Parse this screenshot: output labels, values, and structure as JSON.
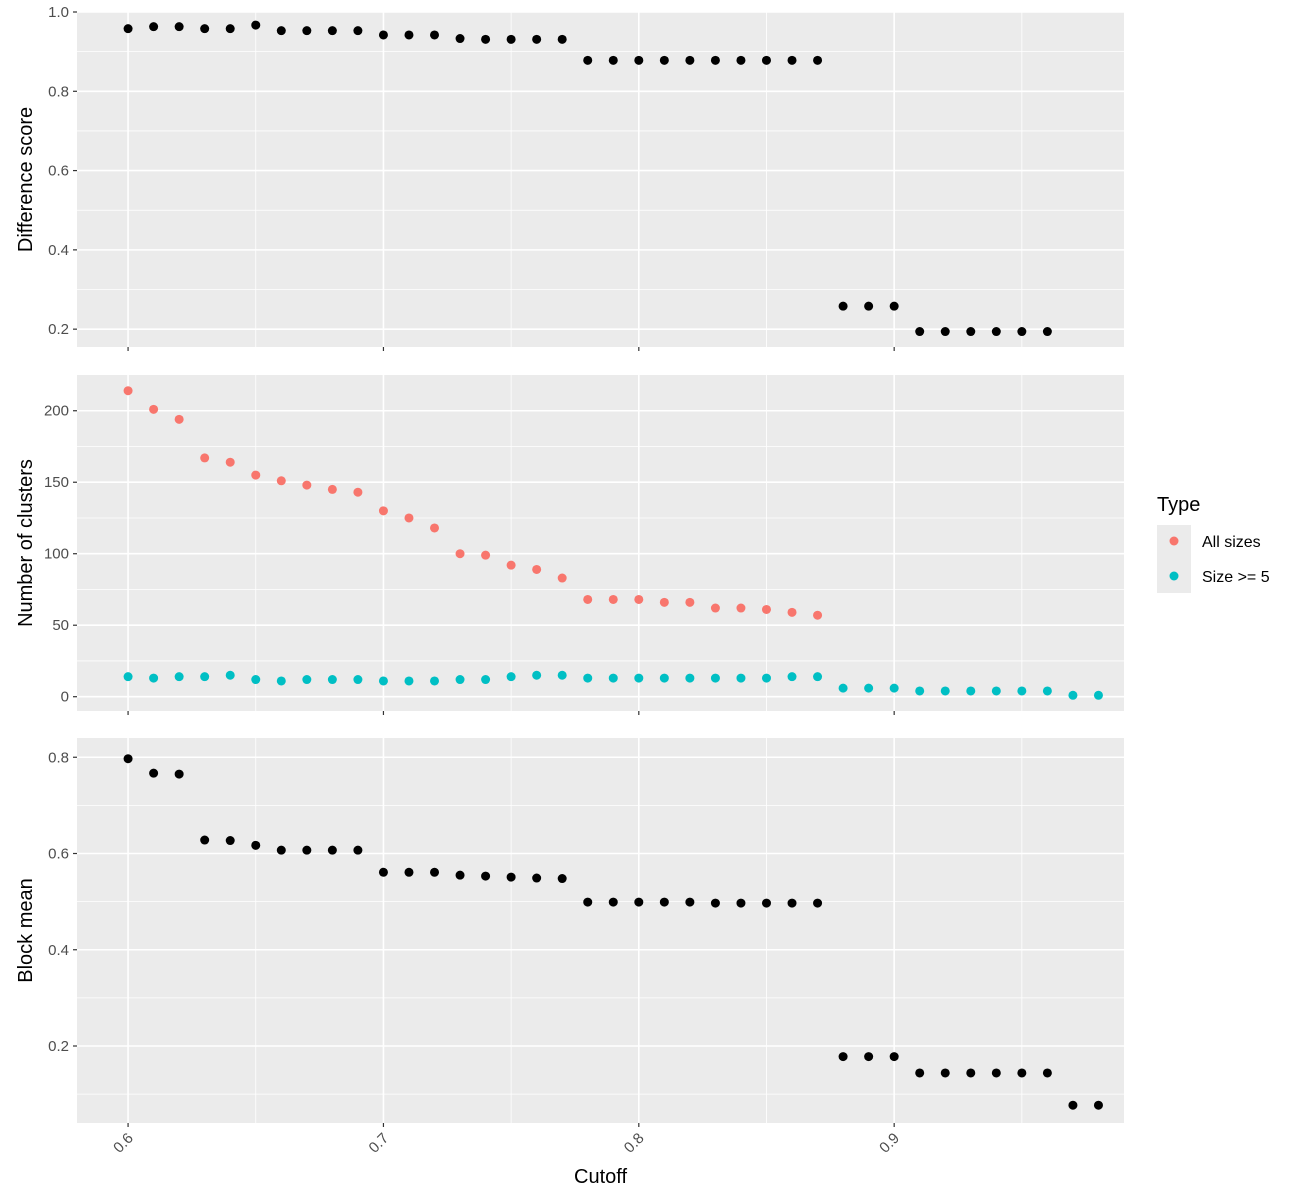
{
  "chart_data": {
    "type": "scatter",
    "x_label": "Cutoff",
    "x_ticks": [
      "0.6",
      "0.7",
      "0.8",
      "0.9"
    ],
    "x_range": [
      0.58,
      0.99
    ],
    "legend": {
      "title": "Type",
      "position": "right",
      "entries": [
        {
          "label": "All sizes",
          "color": "#F8766D"
        },
        {
          "label": "Size >= 5",
          "color": "#00BFC4"
        }
      ]
    },
    "x": [
      0.6,
      0.61,
      0.62,
      0.63,
      0.64,
      0.65,
      0.66,
      0.67,
      0.68,
      0.69,
      0.7,
      0.71,
      0.72,
      0.73,
      0.74,
      0.75,
      0.76,
      0.77,
      0.78,
      0.79,
      0.8,
      0.81,
      0.82,
      0.83,
      0.84,
      0.85,
      0.86,
      0.87,
      0.88,
      0.89,
      0.9,
      0.91,
      0.92,
      0.93,
      0.94,
      0.95,
      0.96,
      0.97,
      0.98
    ],
    "panels": [
      {
        "ylabel": "Difference score",
        "ylim": [
          0.155,
          1.0
        ],
        "y_ticks": [
          "0.2",
          "0.4",
          "0.6",
          "0.8",
          "1.0"
        ],
        "series": [
          {
            "color": "#000000",
            "values": [
              0.958,
              0.963,
              0.963,
              0.958,
              0.958,
              0.967,
              0.953,
              0.953,
              0.953,
              0.953,
              0.942,
              0.942,
              0.942,
              0.933,
              0.931,
              0.931,
              0.931,
              0.931,
              0.878,
              0.878,
              0.878,
              0.878,
              0.878,
              0.878,
              0.878,
              0.878,
              0.878,
              0.878,
              0.258,
              0.258,
              0.258,
              0.194,
              0.194,
              0.194,
              0.194,
              0.194,
              0.194,
              null,
              null
            ]
          }
        ]
      },
      {
        "ylabel": "Number of clusters",
        "ylim": [
          -10,
          225
        ],
        "y_ticks": [
          "0",
          "50",
          "100",
          "150",
          "200"
        ],
        "series": [
          {
            "name": "All sizes",
            "color": "#F8766D",
            "values": [
              214,
              201,
              194,
              167,
              164,
              155,
              151,
              148,
              145,
              143,
              130,
              125,
              118,
              100,
              99,
              92,
              89,
              83,
              68,
              68,
              68,
              66,
              66,
              62,
              62,
              61,
              59,
              57,
              null,
              null,
              null,
              null,
              null,
              null,
              null,
              null,
              null,
              null,
              null
            ]
          },
          {
            "name": "Size >= 5",
            "color": "#00BFC4",
            "values": [
              14,
              13,
              14,
              14,
              15,
              12,
              11,
              12,
              12,
              12,
              11,
              11,
              11,
              12,
              12,
              14,
              15,
              15,
              13,
              13,
              13,
              13,
              13,
              13,
              13,
              13,
              14,
              14,
              6,
              6,
              6,
              4,
              4,
              4,
              4,
              4,
              4,
              1,
              1
            ]
          }
        ]
      },
      {
        "ylabel": "Block mean",
        "ylim": [
          0.04,
          0.84
        ],
        "y_ticks": [
          "0.2",
          "0.4",
          "0.6",
          "0.8"
        ],
        "series": [
          {
            "color": "#000000",
            "values": [
              0.797,
              0.767,
              0.765,
              0.628,
              0.627,
              0.617,
              0.607,
              0.607,
              0.607,
              0.607,
              0.561,
              0.561,
              0.561,
              0.555,
              0.553,
              0.551,
              0.549,
              0.548,
              0.499,
              0.499,
              0.499,
              0.499,
              0.499,
              0.497,
              0.497,
              0.497,
              0.497,
              0.497,
              0.178,
              0.178,
              0.178,
              0.144,
              0.144,
              0.144,
              0.144,
              0.144,
              0.144,
              0.077,
              0.077
            ]
          }
        ]
      }
    ]
  }
}
